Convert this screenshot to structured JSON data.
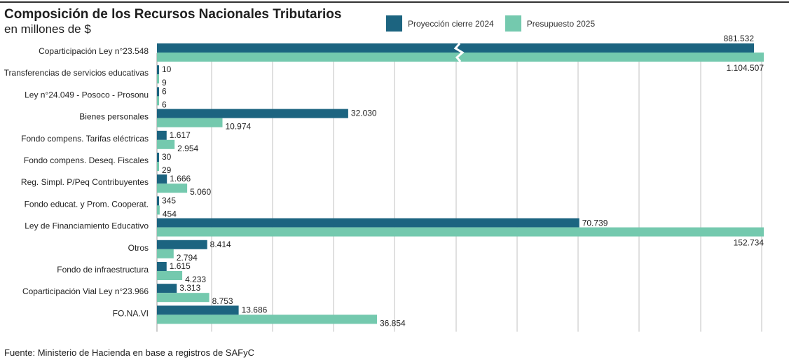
{
  "chart_data": {
    "type": "bar",
    "orientation": "horizontal",
    "title": "Composición de los Recursos Nacionales Tributarios",
    "subtitle": "en millones de $",
    "xlabel": "",
    "ylabel": "",
    "grid": true,
    "legend_position": "top-right",
    "axis_break": true,
    "xlim": [
      0,
      101500
    ],
    "categories": [
      "Coparticipación Ley n°23.548",
      "Transferencias de servicios educativas",
      "Ley n°24.049 - Posoco - Prosonu",
      "Bienes personales",
      "Fondo compens. Tarifas eléctricas",
      "Fondo compens. Deseq. Fiscales",
      "Reg. Simpl. P/Peq Contribuyentes",
      "Fondo educat. y Prom. Cooperat.",
      "Ley de Financiamiento Educativo",
      "Otros",
      "Fondo de infraestructura",
      "Coparticipación Vial Ley n°23.966",
      "FO.NA.VI"
    ],
    "series": [
      {
        "name": "Proyección cierre 2024",
        "color": "#1c6480",
        "values": [
          881532,
          10,
          6,
          32030,
          1617,
          30,
          1666,
          345,
          70739,
          8414,
          1615,
          3313,
          13686
        ],
        "labels": [
          "881.532",
          "10",
          "6",
          "32.030",
          "1.617",
          "30",
          "1.666",
          "345",
          "70.739",
          "8.414",
          "1.615",
          "3.313",
          "13.686"
        ]
      },
      {
        "name": "Presupuesto 2025",
        "color": "#74c9ae",
        "values": [
          1104507,
          9,
          6,
          10974,
          2954,
          29,
          5060,
          454,
          152734,
          2794,
          4233,
          8753,
          36854
        ],
        "labels": [
          "1.104.507",
          "9",
          "6",
          "10.974",
          "2.954",
          "29",
          "5.060",
          "454",
          "152.734",
          "2.794",
          "4.233",
          "8.753",
          "36.854"
        ]
      }
    ]
  },
  "source": "Fuente: Ministerio de Hacienda en base a registros de SAFyC"
}
